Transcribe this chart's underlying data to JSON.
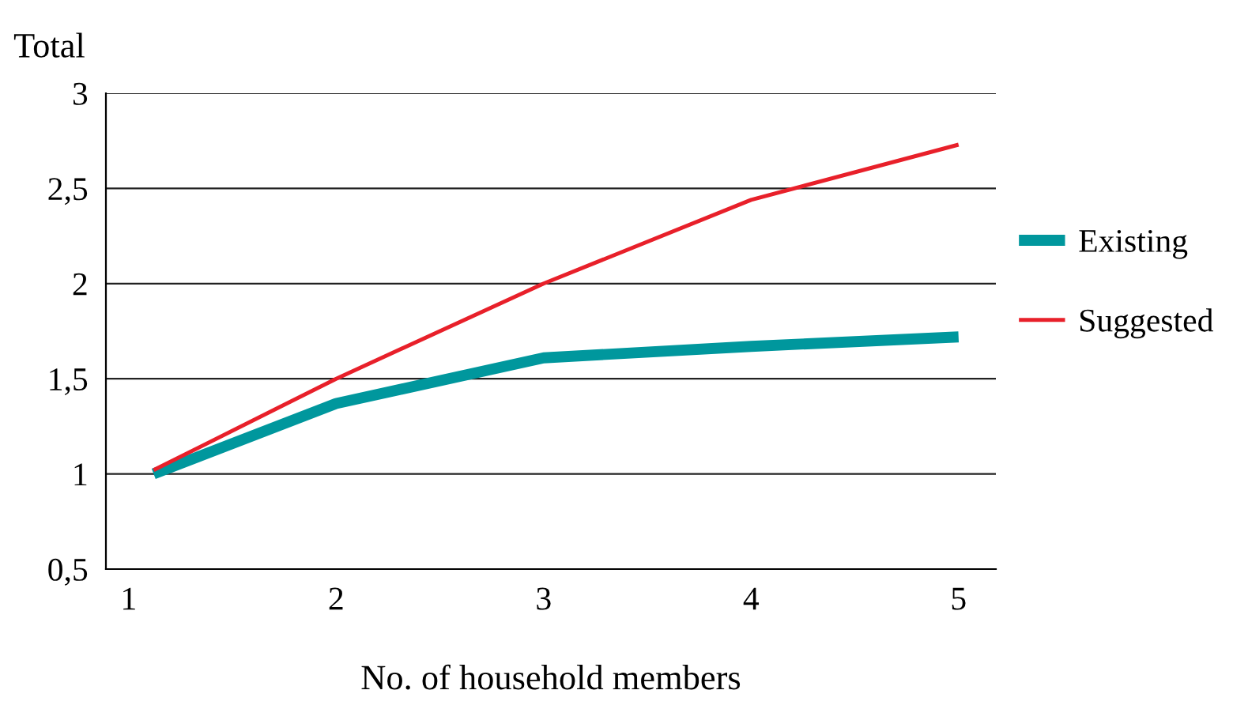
{
  "chart_data": {
    "type": "line",
    "xlabel": "No. of household members",
    "ylabel": "Total",
    "xlim": [
      0.89,
      5.18
    ],
    "xticks": [
      1,
      2,
      3,
      4,
      5
    ],
    "ylim": [
      0.5,
      3
    ],
    "yticks": [
      {
        "value": 0.5,
        "label": "0,5"
      },
      1,
      {
        "value": 1.5,
        "label": "1,5"
      },
      2,
      {
        "value": 2.5,
        "label": "2,5"
      },
      3
    ],
    "grid": "y",
    "legend": "right",
    "marker": "none",
    "line_style": "solid",
    "series": [
      {
        "name": "Existing",
        "color": "#00979d",
        "x": [
          1.12,
          2,
          3,
          4,
          5
        ],
        "values": [
          1.0,
          1.37,
          1.61,
          1.67,
          1.72
        ]
      },
      {
        "name": "Suggested",
        "color": "#e8202a",
        "x": [
          1.12,
          2,
          3,
          4,
          5
        ],
        "values": [
          1.02,
          1.5,
          2.0,
          2.44,
          2.73
        ]
      }
    ]
  }
}
